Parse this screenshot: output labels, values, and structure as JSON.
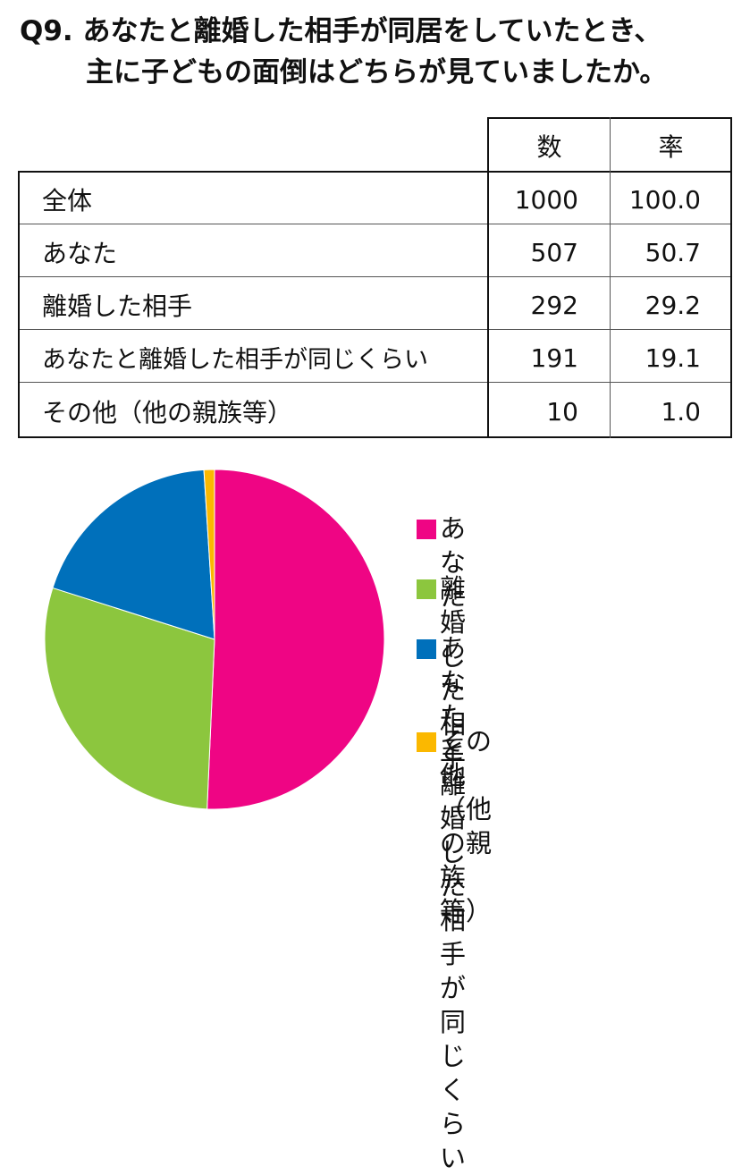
{
  "title": {
    "line1": "Q9. あなたと離婚した相手が同居をしていたとき、",
    "line2": "主に子どもの面倒はどちらが見ていましたか。"
  },
  "table": {
    "headers": [
      "数",
      "率"
    ],
    "rows": [
      {
        "label": "全体",
        "count": "1000",
        "rate": "100.0"
      },
      {
        "label": "あなた",
        "count": "507",
        "rate": "50.7"
      },
      {
        "label": "離婚した相手",
        "count": "292",
        "rate": "29.2"
      },
      {
        "label": "あなたと離婚した相手が同じくらい",
        "count": "191",
        "rate": "19.1"
      },
      {
        "label": "その他（他の親族等）",
        "count": "10",
        "rate": "1.0"
      }
    ]
  },
  "legend": [
    {
      "label": "あなた",
      "color": "#ef0584"
    },
    {
      "label": "離婚した相手",
      "color": "#8cc63e"
    },
    {
      "label": "あなたと離婚した相手\nが同じくらい",
      "color": "#0070bb"
    },
    {
      "label": "その他（他の親族等）",
      "color": "#fbb800"
    }
  ],
  "chart_data": {
    "type": "pie",
    "categories": [
      "あなた",
      "離婚した相手",
      "あなたと離婚した相手が同じくらい",
      "その他（他の親族等）"
    ],
    "values": [
      50.7,
      29.2,
      19.1,
      1.0
    ],
    "counts": [
      507,
      292,
      191,
      10
    ],
    "colors": [
      "#ef0584",
      "#8cc63e",
      "#0070bb",
      "#fbb800"
    ],
    "start": "12 o'clock",
    "direction": "clockwise",
    "legend_position": "right"
  }
}
